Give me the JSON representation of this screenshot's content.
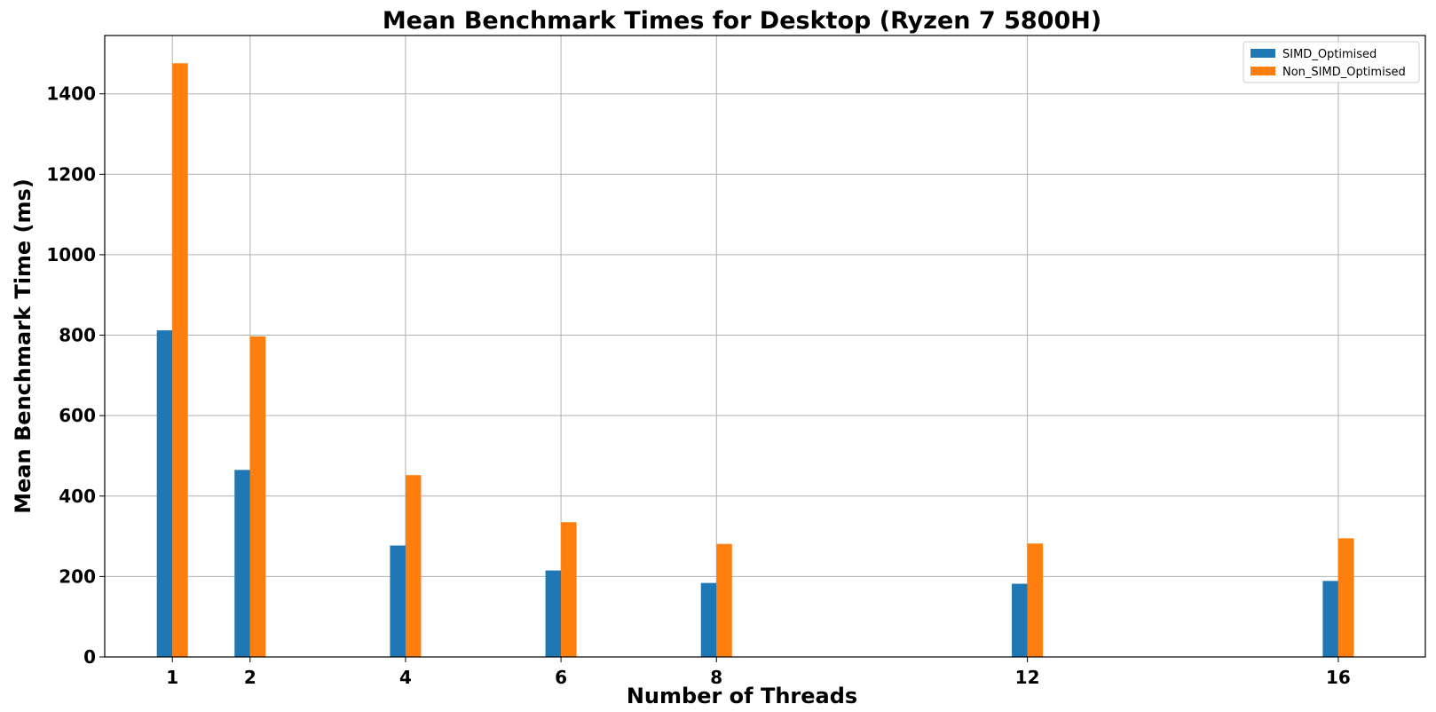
{
  "chart_data": {
    "type": "bar",
    "title": "Mean Benchmark Times for Desktop (Ryzen 7 5800H)",
    "xlabel": "Number of Threads",
    "ylabel": "Mean Benchmark Time (ms)",
    "x": [
      1,
      2,
      4,
      6,
      8,
      12,
      16
    ],
    "x_tick_labels": [
      "1",
      "2",
      "4",
      "6",
      "8",
      "12",
      "16"
    ],
    "xlim": [
      0.13,
      17.12
    ],
    "ylim": [
      0,
      1545
    ],
    "y_ticks": [
      0,
      200,
      400,
      600,
      800,
      1000,
      1200,
      1400
    ],
    "grid": true,
    "legend_position": "top-right",
    "series": [
      {
        "name": "SIMD_Optimised",
        "color": "#1f77b4",
        "values": [
          812,
          465,
          277,
          215,
          184,
          182,
          189
        ]
      },
      {
        "name": "Non_SIMD_Optimised",
        "color": "#ff7f0e",
        "values": [
          1476,
          797,
          452,
          335,
          281,
          282,
          295
        ]
      }
    ]
  }
}
